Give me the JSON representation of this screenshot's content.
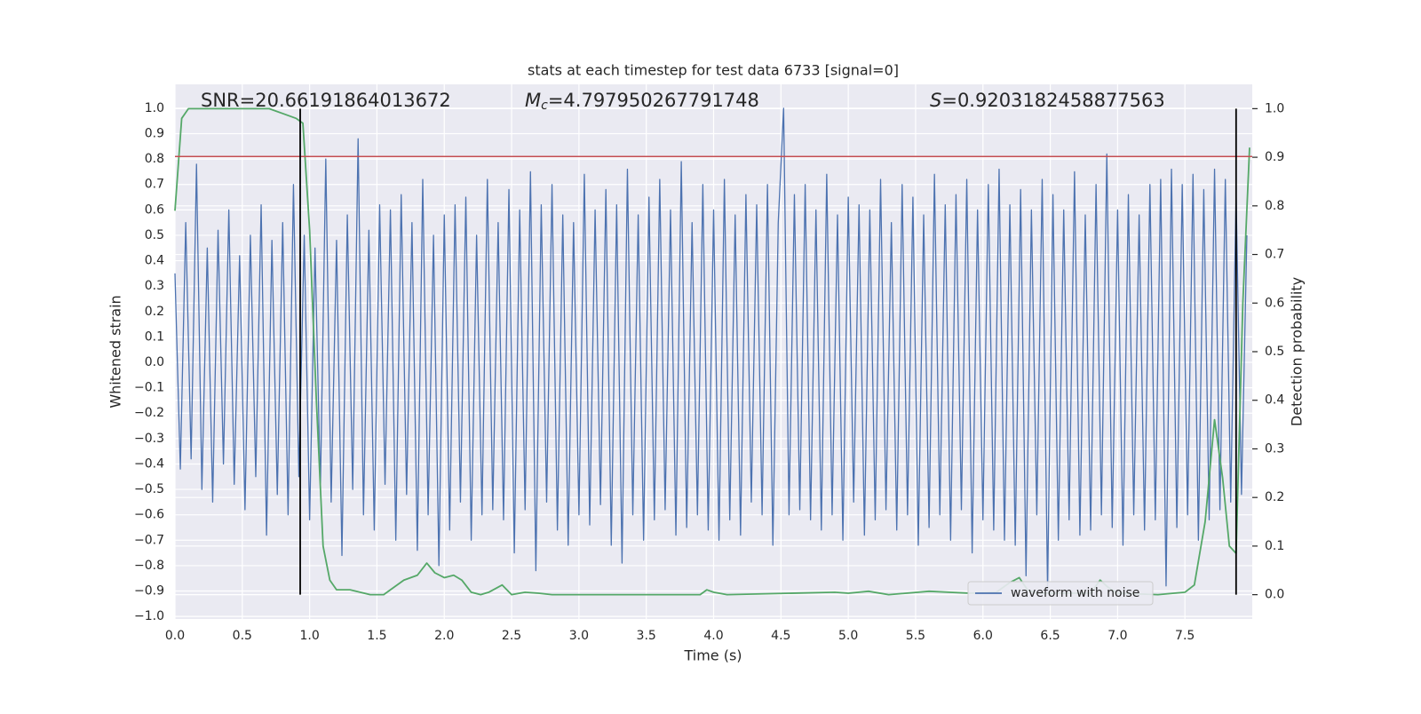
{
  "chart_data": {
    "type": "line",
    "title": "stats at each timestep for test data 6733 [signal=0]",
    "xlabel": "Time (s)",
    "ylabel": "Whitened strain",
    "y2label": "Detection probability",
    "annotations": {
      "snr": "SNR=20.66191864013672",
      "mc": {
        "symbol": "M",
        "subscript": "c",
        "text": "=4.797950267791748"
      },
      "s": {
        "symbol": "S",
        "text": "=0.9203182458877563"
      }
    },
    "xlim": [
      0,
      8.0
    ],
    "ylim": [
      -1.01,
      1.094
    ],
    "y2lim": [
      -0.05,
      1.05
    ],
    "grid": true,
    "legend": "lower right",
    "background": "#eaeaf2",
    "xticks": [
      {
        "value": 0,
        "label": "0.0"
      },
      {
        "value": 0.5,
        "label": "0.5"
      },
      {
        "value": 1,
        "label": "1.0"
      },
      {
        "value": 1.5,
        "label": "1.5"
      },
      {
        "value": 2,
        "label": "2.0"
      },
      {
        "value": 2.5,
        "label": "2.5"
      },
      {
        "value": 3,
        "label": "3.0"
      },
      {
        "value": 3.5,
        "label": "3.5"
      },
      {
        "value": 4,
        "label": "4.0"
      },
      {
        "value": 4.5,
        "label": "4.5"
      },
      {
        "value": 5,
        "label": "5.0"
      },
      {
        "value": 5.5,
        "label": "5.5"
      },
      {
        "value": 6,
        "label": "6.0"
      },
      {
        "value": 6.5,
        "label": "6.5"
      },
      {
        "value": 7,
        "label": "7.0"
      },
      {
        "value": 7.5,
        "label": "7.5"
      }
    ],
    "yticks": [
      {
        "value": -1,
        "label": "−1.0"
      },
      {
        "value": -0.9,
        "label": "−0.9"
      },
      {
        "value": -0.8,
        "label": "−0.8"
      },
      {
        "value": -0.7,
        "label": "−0.7"
      },
      {
        "value": -0.6,
        "label": "−0.6"
      },
      {
        "value": -0.5,
        "label": "−0.5"
      },
      {
        "value": -0.4,
        "label": "−0.4"
      },
      {
        "value": -0.3,
        "label": "−0.3"
      },
      {
        "value": -0.2,
        "label": "−0.2"
      },
      {
        "value": -0.1,
        "label": "−0.1"
      },
      {
        "value": 0,
        "label": "0.0"
      },
      {
        "value": 0.1,
        "label": "0.1"
      },
      {
        "value": 0.2,
        "label": "0.2"
      },
      {
        "value": 0.3,
        "label": "0.3"
      },
      {
        "value": 0.4,
        "label": "0.4"
      },
      {
        "value": 0.5,
        "label": "0.5"
      },
      {
        "value": 0.6,
        "label": "0.6"
      },
      {
        "value": 0.7,
        "label": "0.7"
      },
      {
        "value": 0.8,
        "label": "0.8"
      },
      {
        "value": 0.9,
        "label": "0.9"
      },
      {
        "value": 1,
        "label": "1.0"
      }
    ],
    "y2ticks": [
      {
        "value": 0,
        "label": "0.0"
      },
      {
        "value": 0.1,
        "label": "0.1"
      },
      {
        "value": 0.2,
        "label": "0.2"
      },
      {
        "value": 0.3,
        "label": "0.3"
      },
      {
        "value": 0.4,
        "label": "0.4"
      },
      {
        "value": 0.5,
        "label": "0.5"
      },
      {
        "value": 0.6,
        "label": "0.6"
      },
      {
        "value": 0.7,
        "label": "0.7"
      },
      {
        "value": 0.8,
        "label": "0.8"
      },
      {
        "value": 0.9,
        "label": "0.9"
      },
      {
        "value": 1,
        "label": "1.0"
      }
    ],
    "hline": {
      "y": 0.81,
      "color": "#c44e52"
    },
    "vlines": {
      "x": [
        0.93,
        7.88
      ],
      "ymin": 0,
      "ymax": 1,
      "axis": "y2",
      "color": "#000000"
    },
    "series": [
      {
        "name": "waveform with noise",
        "color": "#4c72b0",
        "x": [
          0,
          0.04,
          0.08,
          0.12,
          0.16,
          0.2,
          0.24,
          0.28,
          0.32,
          0.36,
          0.4,
          0.44,
          0.48,
          0.52,
          0.56,
          0.6,
          0.64,
          0.68,
          0.72,
          0.76,
          0.8,
          0.84,
          0.88,
          0.92,
          0.96,
          1.0,
          1.04,
          1.08,
          1.12,
          1.16,
          1.2,
          1.24,
          1.28,
          1.32,
          1.36,
          1.4,
          1.44,
          1.48,
          1.52,
          1.56,
          1.6,
          1.64,
          1.68,
          1.72,
          1.76,
          1.8,
          1.84,
          1.88,
          1.92,
          1.96,
          2.0,
          2.04,
          2.08,
          2.12,
          2.16,
          2.2,
          2.24,
          2.28,
          2.32,
          2.36,
          2.4,
          2.44,
          2.48,
          2.52,
          2.56,
          2.6,
          2.64,
          2.68,
          2.72,
          2.76,
          2.8,
          2.84,
          2.88,
          2.92,
          2.96,
          3.0,
          3.04,
          3.08,
          3.12,
          3.16,
          3.2,
          3.24,
          3.28,
          3.32,
          3.36,
          3.4,
          3.44,
          3.48,
          3.52,
          3.56,
          3.6,
          3.64,
          3.68,
          3.72,
          3.76,
          3.8,
          3.84,
          3.88,
          3.92,
          3.96,
          4.0,
          4.04,
          4.08,
          4.12,
          4.16,
          4.2,
          4.24,
          4.28,
          4.32,
          4.36,
          4.4,
          4.44,
          4.48,
          4.52,
          4.56,
          4.6,
          4.64,
          4.68,
          4.72,
          4.76,
          4.8,
          4.84,
          4.88,
          4.92,
          4.96,
          5.0,
          5.04,
          5.08,
          5.12,
          5.16,
          5.2,
          5.24,
          5.28,
          5.32,
          5.36,
          5.4,
          5.44,
          5.48,
          5.52,
          5.56,
          5.6,
          5.64,
          5.68,
          5.72,
          5.76,
          5.8,
          5.84,
          5.88,
          5.92,
          5.96,
          6.0,
          6.04,
          6.08,
          6.12,
          6.16,
          6.2,
          6.24,
          6.28,
          6.32,
          6.36,
          6.4,
          6.44,
          6.48,
          6.52,
          6.56,
          6.6,
          6.64,
          6.68,
          6.72,
          6.76,
          6.8,
          6.84,
          6.88,
          6.92,
          6.96,
          7.0,
          7.04,
          7.08,
          7.12,
          7.16,
          7.2,
          7.24,
          7.28,
          7.32,
          7.36,
          7.4,
          7.44,
          7.48,
          7.52,
          7.56,
          7.6,
          7.64,
          7.68,
          7.72,
          7.76,
          7.8,
          7.84,
          7.88,
          7.92,
          7.96
        ],
        "values": [
          0.35,
          -0.42,
          0.55,
          -0.38,
          0.78,
          -0.5,
          0.45,
          -0.55,
          0.52,
          -0.4,
          0.6,
          -0.48,
          0.42,
          -0.58,
          0.5,
          -0.45,
          0.62,
          -0.68,
          0.48,
          -0.52,
          0.55,
          -0.6,
          0.7,
          -0.45,
          0.5,
          -0.62,
          0.45,
          -0.5,
          0.8,
          -0.55,
          0.48,
          -0.76,
          0.58,
          -0.5,
          0.88,
          -0.6,
          0.52,
          -0.66,
          0.62,
          -0.48,
          0.6,
          -0.7,
          0.66,
          -0.52,
          0.55,
          -0.74,
          0.72,
          -0.6,
          0.5,
          -0.8,
          0.58,
          -0.66,
          0.62,
          -0.55,
          0.65,
          -0.7,
          0.5,
          -0.6,
          0.72,
          -0.58,
          0.55,
          -0.62,
          0.68,
          -0.75,
          0.6,
          -0.58,
          0.75,
          -0.82,
          0.62,
          -0.55,
          0.7,
          -0.66,
          0.58,
          -0.72,
          0.55,
          -0.6,
          0.74,
          -0.64,
          0.6,
          -0.56,
          0.68,
          -0.72,
          0.62,
          -0.79,
          0.76,
          -0.6,
          0.58,
          -0.7,
          0.65,
          -0.62,
          0.72,
          -0.58,
          0.6,
          -0.68,
          0.79,
          -0.65,
          0.55,
          -0.6,
          0.7,
          -0.66,
          0.6,
          -0.7,
          0.72,
          -0.62,
          0.58,
          -0.68,
          0.66,
          -0.55,
          0.62,
          -0.6,
          0.7,
          -0.72,
          0.55,
          1.0,
          -0.6,
          0.66,
          -0.58,
          0.7,
          -0.62,
          0.6,
          -0.66,
          0.74,
          -0.6,
          0.58,
          -0.7,
          0.65,
          -0.55,
          0.62,
          -0.68,
          0.6,
          -0.62,
          0.72,
          -0.58,
          0.55,
          -0.66,
          0.7,
          -0.6,
          0.65,
          -0.72,
          0.58,
          -0.65,
          0.74,
          -0.6,
          0.62,
          -0.7,
          0.66,
          -0.58,
          0.72,
          -0.75,
          0.6,
          -0.62,
          0.7,
          -0.66,
          0.76,
          -0.7,
          0.62,
          -0.72,
          0.68,
          -0.84,
          0.6,
          -0.6,
          0.72,
          -0.9,
          0.66,
          -0.7,
          0.6,
          -0.62,
          0.75,
          -0.68,
          0.58,
          -0.66,
          0.7,
          -0.6,
          0.82,
          -0.65,
          0.6,
          -0.72,
          0.66,
          -0.6,
          0.58,
          -0.66,
          0.7,
          -0.62,
          0.72,
          -0.88,
          0.76,
          -0.65,
          0.7,
          -0.6,
          0.74,
          -0.7,
          0.68,
          -0.62,
          0.76,
          -0.58,
          0.72,
          -0.55,
          0.66,
          -0.52,
          0.5
        ]
      },
      {
        "color": "#55a868",
        "axis": "y2",
        "x": [
          0,
          0.05,
          0.1,
          0.7,
          0.8,
          0.9,
          0.95,
          1.0,
          1.05,
          1.1,
          1.15,
          1.2,
          1.3,
          1.45,
          1.55,
          1.6,
          1.7,
          1.8,
          1.87,
          1.93,
          2.0,
          2.07,
          2.13,
          2.2,
          2.27,
          2.33,
          2.43,
          2.5,
          2.6,
          2.7,
          2.8,
          3.0,
          3.5,
          3.9,
          3.95,
          4.0,
          4.1,
          4.9,
          5.0,
          5.15,
          5.3,
          5.6,
          5.9,
          6.1,
          6.2,
          6.27,
          6.33,
          6.4,
          6.8,
          6.87,
          6.93,
          7.0,
          7.3,
          7.5,
          7.57,
          7.65,
          7.72,
          7.78,
          7.83,
          7.88,
          7.93,
          7.98
        ],
        "values": [
          0.79,
          0.98,
          1.0,
          1.0,
          0.99,
          0.98,
          0.97,
          0.75,
          0.4,
          0.1,
          0.03,
          0.01,
          0.01,
          0.0,
          0.0,
          0.01,
          0.03,
          0.04,
          0.065,
          0.045,
          0.035,
          0.04,
          0.03,
          0.005,
          0.0,
          0.005,
          0.02,
          0.0,
          0.005,
          0.003,
          0.0,
          0.0,
          0.0,
          0.0,
          0.01,
          0.005,
          0.0,
          0.005,
          0.003,
          0.007,
          0.0,
          0.007,
          0.003,
          0.005,
          0.025,
          0.035,
          0.01,
          0.003,
          0.003,
          0.03,
          0.015,
          0.003,
          0.0,
          0.005,
          0.02,
          0.15,
          0.36,
          0.24,
          0.1,
          0.085,
          0.6,
          0.92
        ]
      }
    ]
  }
}
